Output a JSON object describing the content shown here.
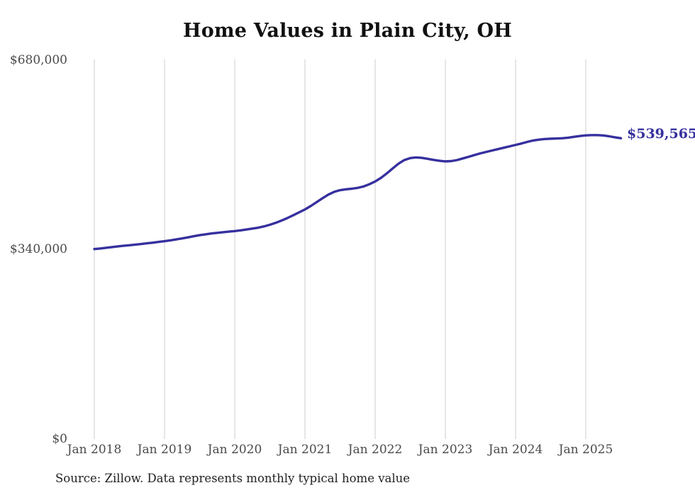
{
  "header": {
    "title": "Home Values in Plain City, OH"
  },
  "footer": {
    "source_note": "Source: Zillow. Data represents monthly typical home value"
  },
  "colors": {
    "line": "#36309e",
    "grid": "#cccccc",
    "axis_text": "#4a4a4a",
    "title_text": "#111111",
    "background": "#ffffff"
  },
  "chart_data": {
    "type": "line",
    "title": "Home Values in Plain City, OH",
    "xlabel": "",
    "ylabel": "",
    "ylim": [
      0,
      680000
    ],
    "y_ticks": [
      0,
      340000,
      680000
    ],
    "y_tick_labels": [
      "$0",
      "$340,000",
      "$680,000"
    ],
    "x_tick_labels": [
      "Jan 2018",
      "Jan 2019",
      "Jan 2020",
      "Jan 2021",
      "Jan 2022",
      "Jan 2023",
      "Jan 2024",
      "Jan 2025"
    ],
    "grid": "vertical-only",
    "legend": "none",
    "end_label": "$539,565",
    "final_value": 539565,
    "series": [
      {
        "name": "Monthly typical home value",
        "start_month": "Jan 2018",
        "end_month": "Jul 2025",
        "frequency": "monthly",
        "values": [
          341000,
          342000,
          343200,
          344500,
          345800,
          346900,
          347800,
          348900,
          350100,
          351300,
          352500,
          353800,
          355100,
          356600,
          358300,
          360100,
          362000,
          364000,
          365900,
          367400,
          368900,
          370100,
          371200,
          372200,
          373200,
          374500,
          376000,
          377600,
          379300,
          381600,
          384500,
          388000,
          392100,
          396600,
          401600,
          406800,
          412000,
          418200,
          425100,
          432100,
          438600,
          443500,
          446500,
          448100,
          449100,
          450600,
          453100,
          457100,
          462100,
          468600,
          476600,
          485500,
          494000,
          500500,
          504000,
          505200,
          504300,
          502600,
          500700,
          499200,
          498100,
          498600,
          500500,
          503400,
          506400,
          509500,
          512500,
          515100,
          517600,
          520100,
          522600,
          525100,
          527600,
          530100,
          533000,
          535500,
          537100,
          538100,
          538700,
          539100,
          539600,
          540600,
          542100,
          543600,
          544600,
          545100,
          545100,
          544500,
          543000,
          541200,
          539565
        ]
      }
    ]
  }
}
